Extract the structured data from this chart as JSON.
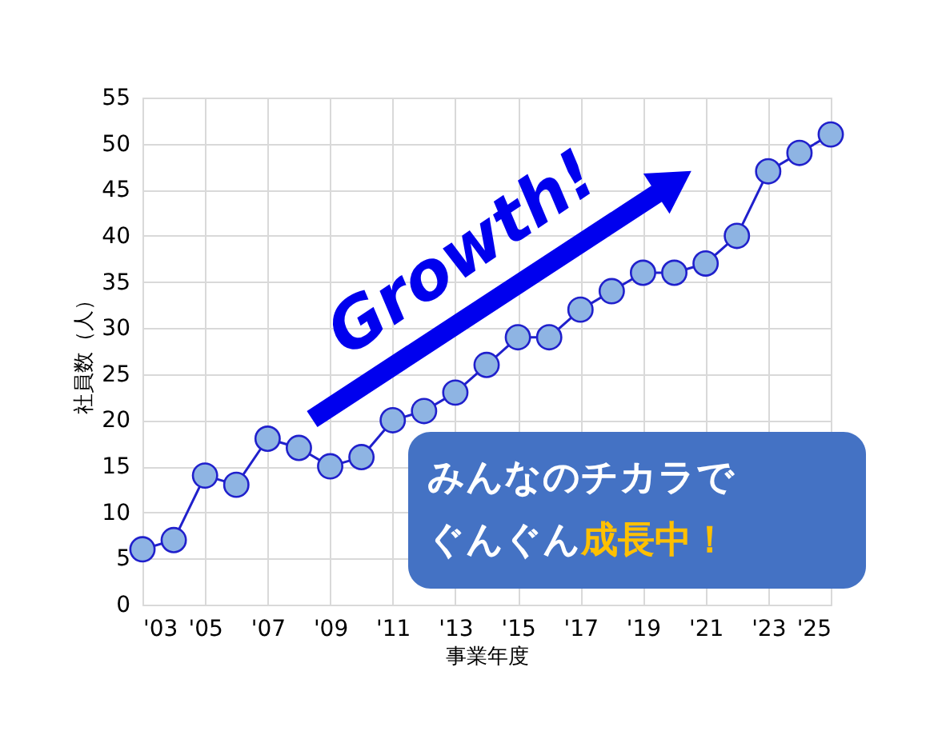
{
  "chart_data": {
    "type": "line",
    "xlabel": "事業年度",
    "ylabel": "社員数（人）",
    "x": [
      2003,
      2004,
      2005,
      2006,
      2007,
      2008,
      2009,
      2010,
      2011,
      2012,
      2013,
      2014,
      2015,
      2016,
      2017,
      2018,
      2019,
      2020,
      2021,
      2022,
      2023,
      2024,
      2025
    ],
    "series": [
      {
        "color": "#8eb4e3",
        "values": [
          6,
          7,
          14,
          13,
          18,
          17,
          15,
          16,
          20,
          21,
          23,
          26,
          29,
          29,
          32,
          34,
          36,
          36,
          37,
          40,
          47,
          49,
          51
        ]
      }
    ],
    "xlim": [
      2003,
      2025
    ],
    "xticks": [
      {
        "value": 2003,
        "label": "'03"
      },
      {
        "value": 2005,
        "label": "'05"
      },
      {
        "value": 2007,
        "label": "'07"
      },
      {
        "value": 2009,
        "label": "'09"
      },
      {
        "value": 2011,
        "label": "'11"
      },
      {
        "value": 2013,
        "label": "'13"
      },
      {
        "value": 2015,
        "label": "'15"
      },
      {
        "value": 2017,
        "label": "'17"
      },
      {
        "value": 2019,
        "label": "'19"
      },
      {
        "value": 2021,
        "label": "'21"
      },
      {
        "value": 2023,
        "label": "'23"
      },
      {
        "value": 2025,
        "label": "'25"
      }
    ],
    "ylim": [
      0,
      55
    ],
    "yticks": [
      0,
      5,
      10,
      15,
      20,
      25,
      30,
      35,
      40,
      45,
      50,
      55
    ],
    "grid": true,
    "marker": "circle",
    "line_style": "solid",
    "annotations": [
      "Growth!",
      "みんなのチカラで",
      "ぐんぐん",
      "成長中！"
    ]
  }
}
